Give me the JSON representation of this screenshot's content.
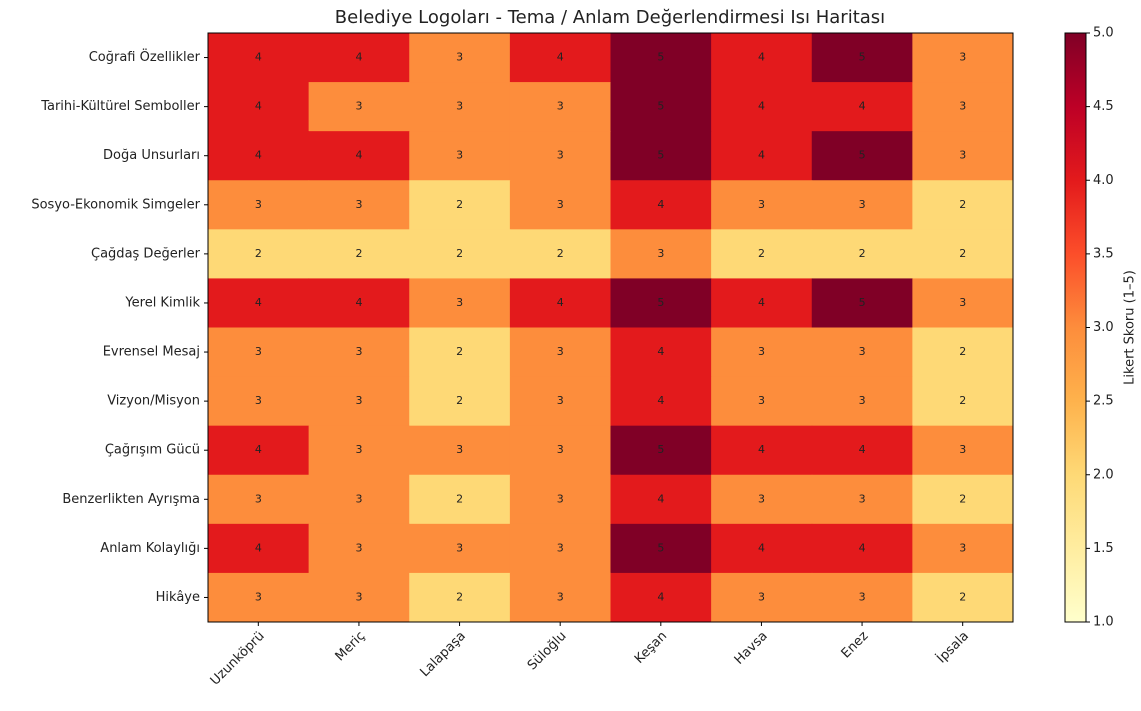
{
  "chart_data": {
    "type": "heatmap",
    "title": "Belediye Logoları - Tema / Anlam Değerlendirmesi Isı Haritası",
    "columns": [
      "Uzunköprü",
      "Meriç",
      "Lalapaşa",
      "Süloğlu",
      "Keşan",
      "Havsa",
      "Enez",
      "İpsala"
    ],
    "rows": [
      "Coğrafi Özellikler",
      "Tarihi-Kültürel Semboller",
      "Doğa Unsurları",
      "Sosyo-Ekonomik Simgeler",
      "Çağdaş Değerler",
      "Yerel Kimlik",
      "Evrensel Mesaj",
      "Vizyon/Misyon",
      "Çağrışım Gücü",
      "Benzerlikten Ayrışma",
      "Anlam Kolaylığı",
      "Hikâye"
    ],
    "values": [
      [
        4,
        4,
        3,
        4,
        5,
        4,
        5,
        3
      ],
      [
        4,
        3,
        3,
        3,
        5,
        4,
        4,
        3
      ],
      [
        4,
        4,
        3,
        3,
        5,
        4,
        5,
        3
      ],
      [
        3,
        3,
        2,
        3,
        4,
        3,
        3,
        2
      ],
      [
        2,
        2,
        2,
        2,
        3,
        2,
        2,
        2
      ],
      [
        4,
        4,
        3,
        4,
        5,
        4,
        5,
        3
      ],
      [
        3,
        3,
        2,
        3,
        4,
        3,
        3,
        2
      ],
      [
        3,
        3,
        2,
        3,
        4,
        3,
        3,
        2
      ],
      [
        4,
        3,
        3,
        3,
        5,
        4,
        4,
        3
      ],
      [
        3,
        3,
        2,
        3,
        4,
        3,
        3,
        2
      ],
      [
        4,
        3,
        3,
        3,
        5,
        4,
        4,
        3
      ],
      [
        3,
        3,
        2,
        3,
        4,
        3,
        3,
        2
      ]
    ],
    "colormap": [
      "#ffffcc",
      "#ffeda0",
      "#fed976",
      "#feb24c",
      "#fd8d3c",
      "#fc4e2a",
      "#e31a1c",
      "#bd0026",
      "#800026"
    ],
    "colorbar_label": "Likert Skoru (1–5)",
    "clim": [
      1,
      5
    ],
    "cticks": [
      {
        "value": 1,
        "label": "1.0"
      },
      {
        "value": 1.5,
        "label": "1.5"
      },
      {
        "value": 2,
        "label": "2.0"
      },
      {
        "value": 2.5,
        "label": "2.5"
      },
      {
        "value": 3,
        "label": "3.0"
      },
      {
        "value": 3.5,
        "label": "3.5"
      },
      {
        "value": 4,
        "label": "4.0"
      },
      {
        "value": 4.5,
        "label": "4.5"
      },
      {
        "value": 5,
        "label": "5.0"
      }
    ]
  }
}
